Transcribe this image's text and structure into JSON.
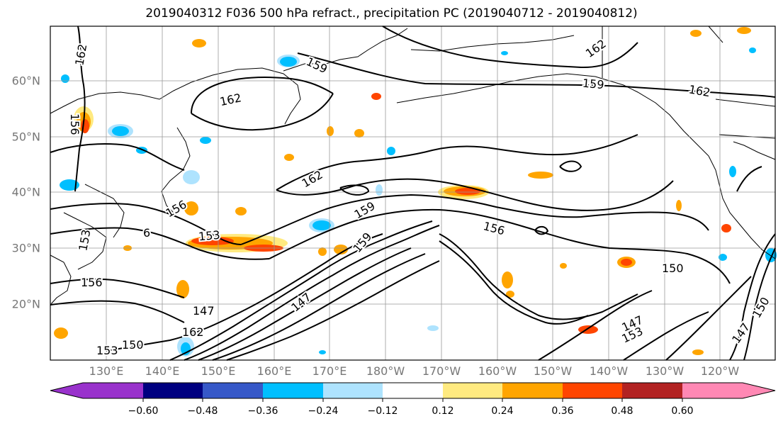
{
  "title": "2019040312 F036 500 hPa refract., precipitation PC (2019040712 - 2019040812)",
  "lat_labels": [
    "60°N",
    "50°N",
    "40°N",
    "30°N",
    "20°N"
  ],
  "lon_labels": [
    "130°E",
    "140°E",
    "150°E",
    "160°E",
    "170°E",
    "180°W",
    "170°W",
    "160°W",
    "150°W",
    "140°W",
    "130°W",
    "120°W"
  ],
  "contour_labels": [
    "162",
    "159",
    "162",
    "162",
    "159",
    "162",
    "162",
    "159",
    "156",
    "153",
    "156",
    "159",
    "156",
    "153",
    "147",
    "162",
    "150",
    "147",
    "150",
    "147",
    "153",
    "150",
    "147",
    "156",
    "153",
    "6"
  ],
  "colorbar": {
    "tick_labels": [
      "−0.60",
      "−0.48",
      "−0.36",
      "−0.24",
      "−0.12",
      "0.12",
      "0.24",
      "0.36",
      "0.48",
      "0.60"
    ],
    "colors": [
      "#9932cc",
      "#000080",
      "#3658c8",
      "#00bfff",
      "#aee3fe",
      "#ffffff",
      "#ffea80",
      "#ffa500",
      "#ff4500",
      "#b22222",
      "#ff88b4"
    ]
  },
  "colors": {
    "land": "#ffffff",
    "grid": "#999999",
    "contour": "#000000"
  }
}
